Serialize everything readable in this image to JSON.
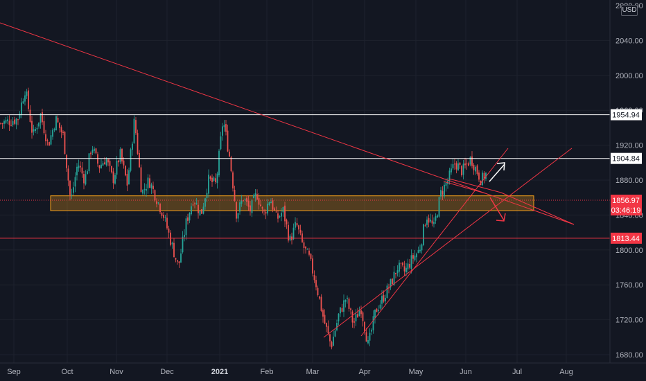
{
  "price_scale": {
    "currency": "USD",
    "top_label": "2080.00"
  },
  "chart_data": {
    "type": "candlestick",
    "x_ticks": [
      "Sep",
      "Oct",
      "Nov",
      "Dec",
      "2021",
      "Feb",
      "Mar",
      "Apr",
      "May",
      "Jun",
      "Jul",
      "Aug"
    ],
    "y_ticks": [
      "2040.00",
      "2000.00",
      "1960.00",
      "1920.00",
      "1880.00",
      "1840.00",
      "1800.00",
      "1760.00",
      "1720.00",
      "1680.00"
    ],
    "ylim": [
      1660,
      2080
    ],
    "grid": true,
    "close_path": [
      [
        "Sep",
        1950
      ],
      [
        "Sep",
        1985
      ],
      [
        "Sep",
        1930
      ],
      [
        "Sep",
        1955
      ],
      [
        "Sep",
        1920
      ],
      [
        "Sep",
        1950
      ],
      [
        "Sep",
        1930
      ],
      [
        "Oct",
        1855
      ],
      [
        "Oct",
        1900
      ],
      [
        "Oct",
        1880
      ],
      [
        "Oct",
        1920
      ],
      [
        "Oct",
        1895
      ],
      [
        "Oct",
        1905
      ],
      [
        "Oct",
        1880
      ],
      [
        "Nov",
        1910
      ],
      [
        "Nov",
        1875
      ],
      [
        "Nov",
        1950
      ],
      [
        "Nov",
        1865
      ],
      [
        "Nov",
        1880
      ],
      [
        "Nov",
        1860
      ],
      [
        "Nov",
        1840
      ],
      [
        "Dec",
        1810
      ],
      [
        "Dec",
        1780
      ],
      [
        "Dec",
        1830
      ],
      [
        "Dec",
        1860
      ],
      [
        "Dec",
        1840
      ],
      [
        "Dec",
        1880
      ],
      [
        "Dec",
        1875
      ],
      [
        "2021",
        1950
      ],
      [
        "2021",
        1905
      ],
      [
        "2021",
        1840
      ],
      [
        "2021",
        1860
      ],
      [
        "2021",
        1845
      ],
      [
        "2021",
        1865
      ],
      [
        "2021",
        1840
      ],
      [
        "Feb",
        1860
      ],
      [
        "Feb",
        1835
      ],
      [
        "Feb",
        1845
      ],
      [
        "Feb",
        1810
      ],
      [
        "Feb",
        1830
      ],
      [
        "Feb",
        1805
      ],
      [
        "Feb",
        1790
      ],
      [
        "Mar",
        1760
      ],
      [
        "Mar",
        1720
      ],
      [
        "Mar",
        1690
      ],
      [
        "Mar",
        1725
      ],
      [
        "Mar",
        1745
      ],
      [
        "Mar",
        1715
      ],
      [
        "Mar",
        1735
      ],
      [
        "Apr",
        1690
      ],
      [
        "Apr",
        1730
      ],
      [
        "Apr",
        1745
      ],
      [
        "Apr",
        1760
      ],
      [
        "Apr",
        1780
      ],
      [
        "Apr",
        1775
      ],
      [
        "Apr",
        1790
      ],
      [
        "May",
        1800
      ],
      [
        "May",
        1840
      ],
      [
        "May",
        1825
      ],
      [
        "May",
        1865
      ],
      [
        "May",
        1880
      ],
      [
        "May",
        1900
      ],
      [
        "May",
        1890
      ],
      [
        "Jun",
        1905
      ],
      [
        "Jun",
        1880
      ],
      [
        "Jun",
        1895
      ],
      [
        "Jun",
        1870
      ],
      [
        "Jun",
        1857
      ]
    ],
    "price_lines": [
      {
        "label": "1954.94",
        "value": 1954.94,
        "color": "#ffffff"
      },
      {
        "label": "1904.84",
        "value": 1904.84,
        "color": "#ffffff"
      },
      {
        "label": "1813.44",
        "value": 1813.44,
        "color": "#f23645"
      }
    ],
    "last_price": {
      "label": "1856.97",
      "value": 1856.97,
      "countdown": "03:46:19",
      "color": "#f23645"
    },
    "support_zone": {
      "from_date": "Sep",
      "to_date": "Jul",
      "low": 1845,
      "high": 1862,
      "color": "#f7a21b"
    },
    "annotations": {
      "arrows": [
        {
          "direction": "up",
          "color": "#ffffff"
        },
        {
          "direction": "down",
          "color": "#f23645"
        }
      ],
      "trendlines_color": "#f23645"
    },
    "colors": {
      "up": "#26a69a",
      "down": "#ef5350",
      "background": "#131722",
      "grid": "#1e222d",
      "text": "#b2b5be"
    }
  }
}
